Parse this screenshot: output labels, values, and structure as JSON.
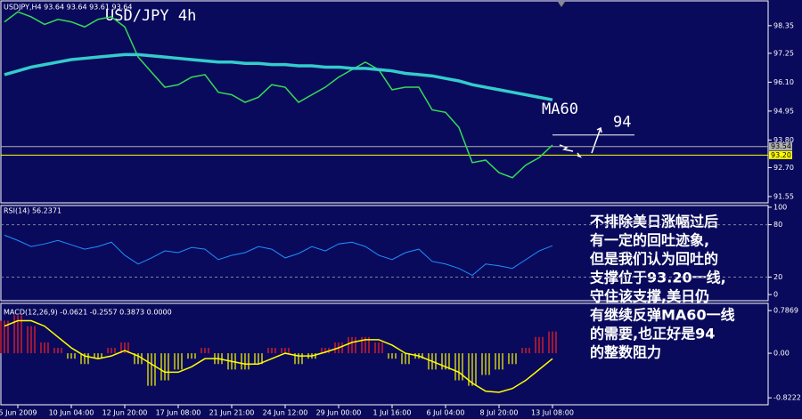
{
  "chart_data": [
    {
      "type": "line",
      "title": "USD/JPY 4h",
      "subtitle": "USDJPY,H4 93.64 93.64 93.61 93.64",
      "categories": [
        null,
        "5 Jun 2009",
        null,
        null,
        null,
        "10 Jun 04:00",
        null,
        null,
        null,
        "12 Jun 20:00",
        null,
        null,
        null,
        "17 Jun 08:00",
        null,
        null,
        null,
        "21 Jun 21:00",
        null,
        null,
        null,
        "24 Jun 12:00",
        null,
        null,
        null,
        "29 Jun 00:00",
        null,
        null,
        null,
        "1 Jul 16:00",
        null,
        null,
        null,
        "6 Jul 04:00",
        null,
        null,
        null,
        "8 Jul 20:00",
        null,
        null,
        null,
        "13 Jul 08:00"
      ],
      "series": [
        {
          "color": "#33dd55",
          "width": 1.5,
          "values": [
            98.5,
            98.9,
            98.7,
            98.4,
            98.6,
            98.5,
            98.3,
            98.6,
            98.7,
            98.3,
            97.1,
            96.5,
            95.9,
            96.0,
            96.3,
            96.4,
            95.7,
            95.6,
            95.3,
            95.5,
            96.0,
            95.9,
            95.3,
            95.6,
            95.9,
            96.3,
            96.6,
            96.9,
            96.6,
            95.8,
            95.9,
            95.9,
            95.0,
            94.9,
            94.3,
            92.9,
            93.0,
            92.5,
            92.3,
            92.8,
            93.1,
            93.6
          ]
        },
        {
          "name": "MA60",
          "color": "#33cccc",
          "width": 3.5,
          "values": [
            96.4,
            96.55,
            96.7,
            96.8,
            96.9,
            97.0,
            97.05,
            97.1,
            97.15,
            97.2,
            97.2,
            97.15,
            97.1,
            97.05,
            97.0,
            96.95,
            96.9,
            96.9,
            96.85,
            96.85,
            96.8,
            96.8,
            96.75,
            96.75,
            96.7,
            96.7,
            96.65,
            96.65,
            96.6,
            96.55,
            96.45,
            96.4,
            96.35,
            96.25,
            96.15,
            96.0,
            95.9,
            95.8,
            95.7,
            95.6,
            95.5,
            95.4
          ]
        }
      ],
      "ylim": [
        91.3,
        99.3
      ],
      "yticks": [
        98.35,
        97.25,
        {
          "value": 96.1,
          "label": "96.10"
        },
        94.95,
        {
          "value": 93.8,
          "label": "93.80"
        },
        {
          "value": 92.7,
          "label": "92.70"
        },
        91.55
      ],
      "hlines": [
        {
          "value": 93.54,
          "color": "#b0b0b0"
        },
        {
          "value": 93.2,
          "label": "93.20",
          "color": "#ffff00"
        }
      ],
      "target_level": 94,
      "notes": [
        "不排除美日涨幅过后",
        "有一定的回吐迹象,",
        "但是我们认为回吐的",
        "支撑位于93.20一线,",
        "守住该支撑,美日仍",
        "有继续反弹MA60一线",
        "的需要,也正好是94",
        "的整数阻力"
      ]
    },
    {
      "type": "line",
      "title": "RSI(14) 56.2371",
      "series": [
        {
          "color": "#1e90ff",
          "width": 1,
          "values": [
            68,
            62,
            55,
            58,
            62,
            57,
            52,
            55,
            60,
            45,
            35,
            42,
            50,
            48,
            54,
            52,
            40,
            45,
            48,
            55,
            52,
            42,
            47,
            55,
            50,
            58,
            60,
            55,
            45,
            40,
            48,
            52,
            38,
            35,
            30,
            22,
            35,
            33,
            30,
            40,
            50,
            56
          ]
        }
      ],
      "ylim": [
        -7,
        102
      ],
      "yticks": [
        0,
        20,
        80,
        100
      ],
      "levels": [
        20,
        80
      ]
    },
    {
      "type": "macd",
      "title": "MACD(12,26,9) -0.0621 -0.2557 0.3873 0.0000",
      "histogram": {
        "positive_color": "#ff2020",
        "negative_color": "#ffff00",
        "values": [
          0.6,
          0.7,
          0.5,
          0.2,
          0.1,
          -0.1,
          -0.2,
          -0.1,
          0.1,
          0.2,
          -0.2,
          -0.6,
          -0.5,
          -0.3,
          -0.1,
          0.1,
          -0.2,
          -0.3,
          -0.3,
          -0.2,
          0.1,
          0.1,
          -0.2,
          -0.1,
          0.1,
          0.2,
          0.3,
          0.3,
          0.2,
          -0.1,
          -0.2,
          -0.1,
          -0.3,
          -0.3,
          -0.5,
          -0.6,
          -0.4,
          -0.3,
          -0.2,
          0.1,
          0.3,
          0.4
        ]
      },
      "series": [
        {
          "color": "#ffff00",
          "width": 1.5,
          "values": [
            0.5,
            0.6,
            0.6,
            0.5,
            0.3,
            0.1,
            -0.05,
            -0.1,
            -0.05,
            0.05,
            -0.05,
            -0.2,
            -0.35,
            -0.35,
            -0.25,
            -0.1,
            -0.1,
            -0.15,
            -0.2,
            -0.2,
            -0.1,
            0,
            -0.05,
            -0.05,
            0.02,
            0.1,
            0.2,
            0.25,
            0.25,
            0.15,
            0,
            -0.05,
            -0.15,
            -0.25,
            -0.35,
            -0.55,
            -0.7,
            -0.72,
            -0.65,
            -0.5,
            -0.3,
            -0.1
          ]
        }
      ],
      "ylim": [
        -0.95,
        0.92
      ],
      "yticks": [
        0.7869,
        {
          "value": 0,
          "label": "0.00"
        },
        -0.8222
      ]
    }
  ]
}
